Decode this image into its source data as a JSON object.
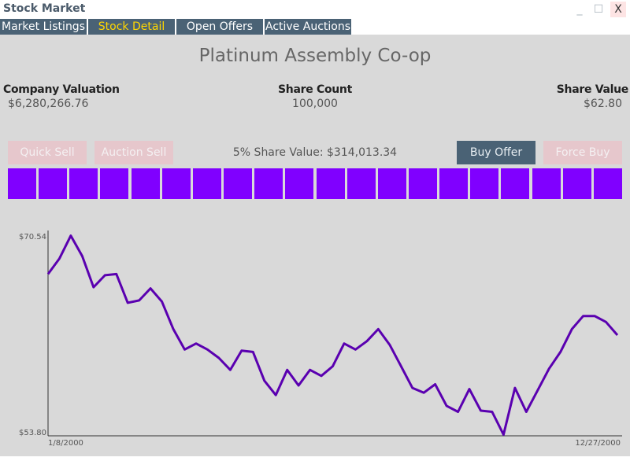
{
  "window": {
    "title": "Stock Market",
    "minimize_icon": "minimize-icon",
    "maximize_icon": "maximize-icon",
    "close_label": "X"
  },
  "tabs": [
    {
      "label": "Market Listings",
      "active": false
    },
    {
      "label": "Stock Detail",
      "active": true
    },
    {
      "label": "Open Offers",
      "active": false
    },
    {
      "label": "Active Auctions",
      "active": false
    }
  ],
  "detail": {
    "company_name": "Platinum Assembly Co-op",
    "valuation_label": "Company Valuation",
    "valuation_value": "$6,280,266.76",
    "share_count_label": "Share Count",
    "share_count_value": "100,000",
    "share_value_label": "Share Value",
    "share_value_value": "$62.80",
    "five_pct_text": "5% Share Value: $314,013.34"
  },
  "actions": {
    "quick_sell": "Quick Sell",
    "auction_sell": "Auction Sell",
    "buy_offer": "Buy Offer",
    "force_buy": "Force Buy"
  },
  "ownership": {
    "block_count": 20,
    "color": "#8000ff"
  },
  "colors": {
    "tab_bg": "#4a6275",
    "active_tab_text": "#ffd700",
    "line": "#5a00b0",
    "content_bg": "#d9d9d9"
  },
  "chart_data": {
    "type": "line",
    "x_start_label": "1/8/2000",
    "x_end_label": "12/27/2000",
    "y_max_label": "$70.54",
    "y_min_label": "$53.80",
    "ylim": [
      53.8,
      70.54
    ],
    "values": [
      67.3,
      68.6,
      70.5,
      68.8,
      66.2,
      67.2,
      67.3,
      64.9,
      65.1,
      66.1,
      65.0,
      62.7,
      61.0,
      61.5,
      61.0,
      60.3,
      59.3,
      60.9,
      60.8,
      58.4,
      57.2,
      59.3,
      58.0,
      59.3,
      58.8,
      59.6,
      61.5,
      61.0,
      61.7,
      62.7,
      61.4,
      59.6,
      57.8,
      57.4,
      58.1,
      56.3,
      55.8,
      57.7,
      55.9,
      55.8,
      53.9,
      57.8,
      55.8,
      57.6,
      59.4,
      60.8,
      62.7,
      63.8,
      63.8,
      63.3,
      62.2
    ],
    "grid": false,
    "legend": "none"
  }
}
